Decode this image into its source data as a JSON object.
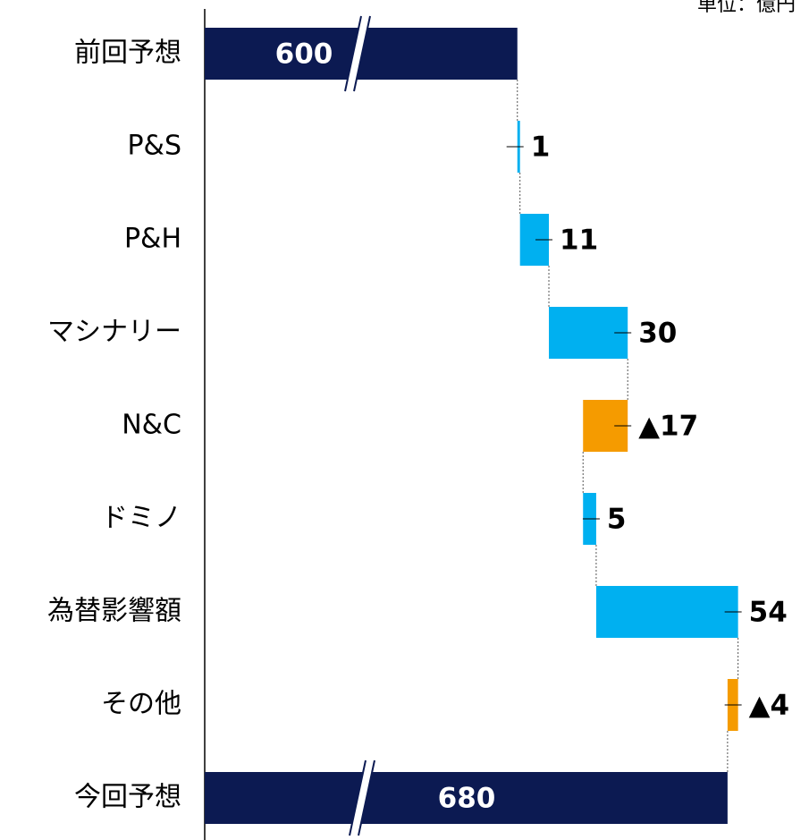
{
  "chart_data": {
    "type": "waterfall",
    "unit_label": "単位：億円",
    "categories": [
      "前回予想",
      "P&S",
      "P&H",
      "マシナリー",
      "N&C",
      "ドミノ",
      "為替影響額",
      "その他",
      "今回予想"
    ],
    "values": [
      600,
      1,
      11,
      30,
      -17,
      5,
      54,
      -4,
      680
    ],
    "value_labels": [
      "600",
      "1",
      "11",
      "30",
      "▲17",
      "5",
      "54",
      "▲4",
      "680"
    ],
    "is_total": [
      true,
      false,
      false,
      false,
      false,
      false,
      false,
      false,
      true
    ],
    "colors": {
      "total": "#0c1a52",
      "increase": "#00b0f0",
      "decrease": "#f59b00"
    },
    "xlim": [
      481,
      711
    ],
    "axis_break": true
  }
}
